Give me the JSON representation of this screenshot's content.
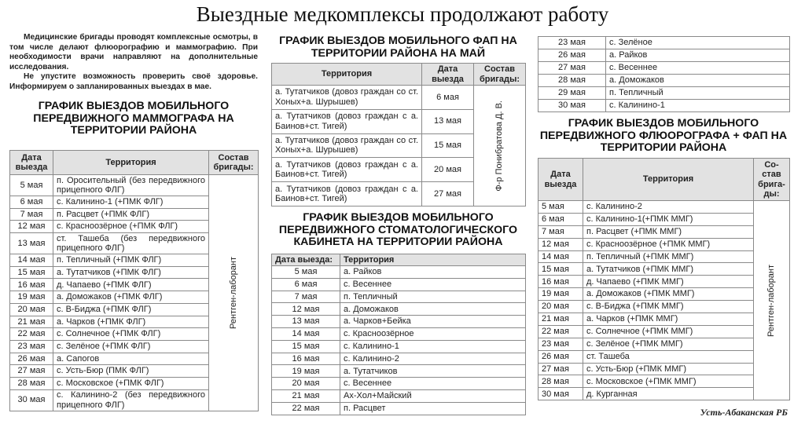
{
  "title": "Выездные медкомплексы продолжают работу",
  "intro": [
    "Медицинские бригады проводят комплексные осмотры, в том числе делают флюорографию и маммографию. При необходимости врачи направляют на дополнительные исследования.",
    "Не упустите возможность проверить своё здоровье. Информируем о запланированных выездах в мае."
  ],
  "mammograph": {
    "title": "ГРАФИК ВЫЕЗДОВ МОБИЛЬНОГО ПЕРЕДВИЖНОГО МАММОГРАФА НА ТЕРРИТОРИИ РАЙОНА",
    "headers": [
      "Дата выезда",
      "Территория",
      "Состав бригады:"
    ],
    "brigade": "Рентген-лаборант",
    "rows": [
      [
        "5 мая",
        "п. Оросительный (без передвижного прицепного ФЛГ)"
      ],
      [
        "6 мая",
        "с. Калинино-1 (+ПМК ФЛГ)"
      ],
      [
        "7 мая",
        "п. Расцвет (+ПМК ФЛГ)"
      ],
      [
        "12 мая",
        "с. Красноозёрное (+ПМК ФЛГ)"
      ],
      [
        "13 мая",
        "ст. Ташеба (без передвижного прицепного ФЛГ)"
      ],
      [
        "14 мая",
        "п. Тепличный (+ПМК ФЛГ)"
      ],
      [
        "15 мая",
        "а. Тутатчиков (+ПМК ФЛГ)"
      ],
      [
        "16 мая",
        "д. Чапаево (+ПМК ФЛГ)"
      ],
      [
        "19 мая",
        "а. Доможаков (+ПМК ФЛГ)"
      ],
      [
        "20 мая",
        "с. В-Биджа (+ПМК ФЛГ)"
      ],
      [
        "21 мая",
        "а. Чарков (+ПМК ФЛГ)"
      ],
      [
        "22 мая",
        "с. Солнечное (+ПМК ФЛГ)"
      ],
      [
        "23 мая",
        "с. Зелёное (+ПМК ФЛГ)"
      ],
      [
        "26 мая",
        "а. Сапогов"
      ],
      [
        "27 мая",
        "с. Усть-Бюр (ПМК ФЛГ)"
      ],
      [
        "28 мая",
        "с. Московское (+ПМК ФЛГ)"
      ],
      [
        "30 мая",
        "с. Калинино-2 (без передвижного прицепного ФЛГ)"
      ]
    ]
  },
  "fap": {
    "title": "ГРАФИК ВЫЕЗДОВ МОБИЛЬНОГО ФАП НА ТЕРРИТОРИИ РАЙОНА НА МАЙ",
    "headers": [
      "Территория",
      "Дата выезда",
      "Состав бригады:"
    ],
    "brigade": "Ф-р Понибратова Д. В.",
    "rows": [
      [
        "а. Тутатчиков (довоз граждан со ст. Хоных+а. Шурышев)",
        "6 мая"
      ],
      [
        "а. Тутатчиков (довоз граждан с а. Баинов+ст. Тигей)",
        "13 мая"
      ],
      [
        "а. Тутатчиков (довоз граждан со ст. Хоных+а. Шурышев)",
        "15 мая"
      ],
      [
        "а. Тутатчиков (довоз граждан с а. Баинов+ст. Тигей)",
        "20 мая"
      ],
      [
        "а. Тутатчиков (довоз граждан с а. Баинов+ст. Тигей)",
        "27 мая"
      ]
    ]
  },
  "dental": {
    "title": "ГРАФИК ВЫЕЗДОВ МОБИЛЬНОГО ПЕРЕДВИЖНОГО СТОМАТОЛОГИЧЕСКОГО КАБИНЕТА НА ТЕРРИТОРИИ РАЙОНА",
    "headers": [
      "Дата выезда:",
      "Территория"
    ],
    "rows": [
      [
        "5 мая",
        "а. Райков"
      ],
      [
        "6 мая",
        "с. Весеннее"
      ],
      [
        "7 мая",
        "п. Тепличный"
      ],
      [
        "12 мая",
        "а. Доможаков"
      ],
      [
        "13 мая",
        "а. Чарков+Бейка"
      ],
      [
        "14 мая",
        "с. Красноозёрное"
      ],
      [
        "15 мая",
        "с. Калинино-1"
      ],
      [
        "16 мая",
        "с. Калинино-2"
      ],
      [
        "19 мая",
        "а. Тутатчиков"
      ],
      [
        "20 мая",
        "с. Весеннее"
      ],
      [
        "21 мая",
        "Ах-Хол+Майский"
      ],
      [
        "22 мая",
        "п. Расцвет"
      ]
    ],
    "rows_continued": [
      [
        "23 мая",
        "с. Зелёное"
      ],
      [
        "26 мая",
        "а. Райков"
      ],
      [
        "27 мая",
        "с. Весеннее"
      ],
      [
        "28 мая",
        "а. Доможаков"
      ],
      [
        "29 мая",
        "п. Тепличный"
      ],
      [
        "30 мая",
        "с. Калинино-1"
      ]
    ]
  },
  "fluoro": {
    "title": "ГРАФИК ВЫЕЗДОВ МОБИЛЬНОГО ПЕРЕДВИЖНОГО ФЛЮОРОГРАФА + ФАП НА ТЕРРИТОРИИ РАЙОНА",
    "headers": [
      "Дата выезда",
      "Территория",
      "Со-став брига-ды:"
    ],
    "brigade": "Рентген-лаборант",
    "rows": [
      [
        "5 мая",
        "с. Калинино-2"
      ],
      [
        "6 мая",
        "с. Калинино-1(+ПМК ММГ)"
      ],
      [
        "7 мая",
        "п. Расцвет (+ПМК ММГ)"
      ],
      [
        "12 мая",
        "с. Красноозёрное (+ПМК ММГ)"
      ],
      [
        "14 мая",
        "п. Тепличный (+ПМК ММГ)"
      ],
      [
        "15 мая",
        "а. Тутатчиков (+ПМК ММГ)"
      ],
      [
        "16 мая",
        "д. Чапаево (+ПМК ММГ)"
      ],
      [
        "19 мая",
        "а. Доможаков (+ПМК ММГ)"
      ],
      [
        "20 мая",
        "с. В-Биджа (+ПМК ММГ)"
      ],
      [
        "21 мая",
        "а. Чарков (+ПМК ММГ)"
      ],
      [
        "22 мая",
        "с. Солнечное (+ПМК ММГ)"
      ],
      [
        "23 мая",
        "с. Зелёное (+ПМК ММГ)"
      ],
      [
        "26 мая",
        "ст. Ташеба"
      ],
      [
        "27 мая",
        "с. Усть-Бюр (+ПМК ММГ)"
      ],
      [
        "28 мая",
        "с. Московское (+ПМК ММГ)"
      ],
      [
        "30 мая",
        "д. Курганная"
      ]
    ]
  },
  "footer": "Усть-Абаканская РБ"
}
